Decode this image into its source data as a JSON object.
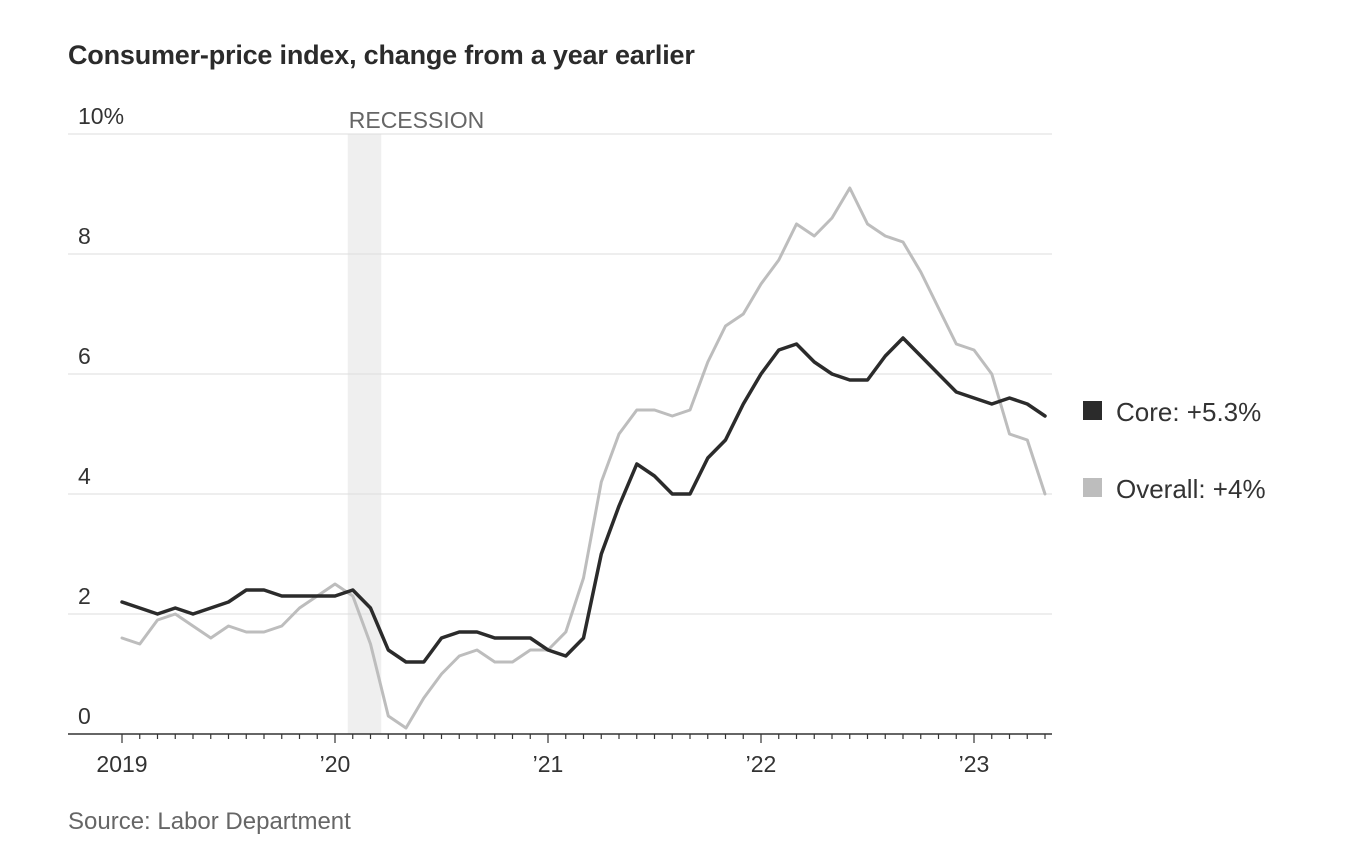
{
  "chart_data": {
    "type": "line",
    "title": "Consumer-price index, change from a year earlier",
    "source": "Source: Labor Department",
    "y_ticks": [
      {
        "value": 10,
        "label": "10%"
      },
      {
        "value": 8,
        "label": "8"
      },
      {
        "value": 6,
        "label": "6"
      },
      {
        "value": 4,
        "label": "4"
      },
      {
        "value": 2,
        "label": "2"
      },
      {
        "value": 0,
        "label": "0"
      }
    ],
    "ylim": [
      0,
      10
    ],
    "xlim": [
      "2019-01",
      "2023-05"
    ],
    "x_ticks": [
      {
        "date": "2019-01",
        "label": "2019"
      },
      {
        "date": "2020-01",
        "label": "’20"
      },
      {
        "date": "2021-01",
        "label": "’21"
      },
      {
        "date": "2022-01",
        "label": "’22"
      },
      {
        "date": "2023-01",
        "label": "’23"
      }
    ],
    "grid": true,
    "recession": {
      "label": "RECESSION",
      "start": "2020-02",
      "end": "2020-04"
    },
    "legend_position": "right",
    "x": [
      "2019-01",
      "2019-02",
      "2019-03",
      "2019-04",
      "2019-05",
      "2019-06",
      "2019-07",
      "2019-08",
      "2019-09",
      "2019-10",
      "2019-11",
      "2019-12",
      "2020-01",
      "2020-02",
      "2020-03",
      "2020-04",
      "2020-05",
      "2020-06",
      "2020-07",
      "2020-08",
      "2020-09",
      "2020-10",
      "2020-11",
      "2020-12",
      "2021-01",
      "2021-02",
      "2021-03",
      "2021-04",
      "2021-05",
      "2021-06",
      "2021-07",
      "2021-08",
      "2021-09",
      "2021-10",
      "2021-11",
      "2021-12",
      "2022-01",
      "2022-02",
      "2022-03",
      "2022-04",
      "2022-05",
      "2022-06",
      "2022-07",
      "2022-08",
      "2022-09",
      "2022-10",
      "2022-11",
      "2022-12",
      "2023-01",
      "2023-02",
      "2023-03",
      "2023-04",
      "2023-05"
    ],
    "series": [
      {
        "name": "Overall",
        "legend_label": "Overall: +4%",
        "color": "#bdbdbd",
        "values": [
          1.6,
          1.5,
          1.9,
          2.0,
          1.8,
          1.6,
          1.8,
          1.7,
          1.7,
          1.8,
          2.1,
          2.3,
          2.5,
          2.3,
          1.5,
          0.3,
          0.1,
          0.6,
          1.0,
          1.3,
          1.4,
          1.2,
          1.2,
          1.4,
          1.4,
          1.7,
          2.6,
          4.2,
          5.0,
          5.4,
          5.4,
          5.3,
          5.4,
          6.2,
          6.8,
          7.0,
          7.5,
          7.9,
          8.5,
          8.3,
          8.6,
          9.1,
          8.5,
          8.3,
          8.2,
          7.7,
          7.1,
          6.5,
          6.4,
          6.0,
          5.0,
          4.9,
          4.0
        ]
      },
      {
        "name": "Core",
        "legend_label": "Core: +5.3%",
        "color": "#2b2b2b",
        "values": [
          2.2,
          2.1,
          2.0,
          2.1,
          2.0,
          2.1,
          2.2,
          2.4,
          2.4,
          2.3,
          2.3,
          2.3,
          2.3,
          2.4,
          2.1,
          1.4,
          1.2,
          1.2,
          1.6,
          1.7,
          1.7,
          1.6,
          1.6,
          1.6,
          1.4,
          1.3,
          1.6,
          3.0,
          3.8,
          4.5,
          4.3,
          4.0,
          4.0,
          4.6,
          4.9,
          5.5,
          6.0,
          6.4,
          6.5,
          6.2,
          6.0,
          5.9,
          5.9,
          6.3,
          6.6,
          6.3,
          6.0,
          5.7,
          5.6,
          5.5,
          5.6,
          5.5,
          5.3
        ]
      }
    ]
  }
}
